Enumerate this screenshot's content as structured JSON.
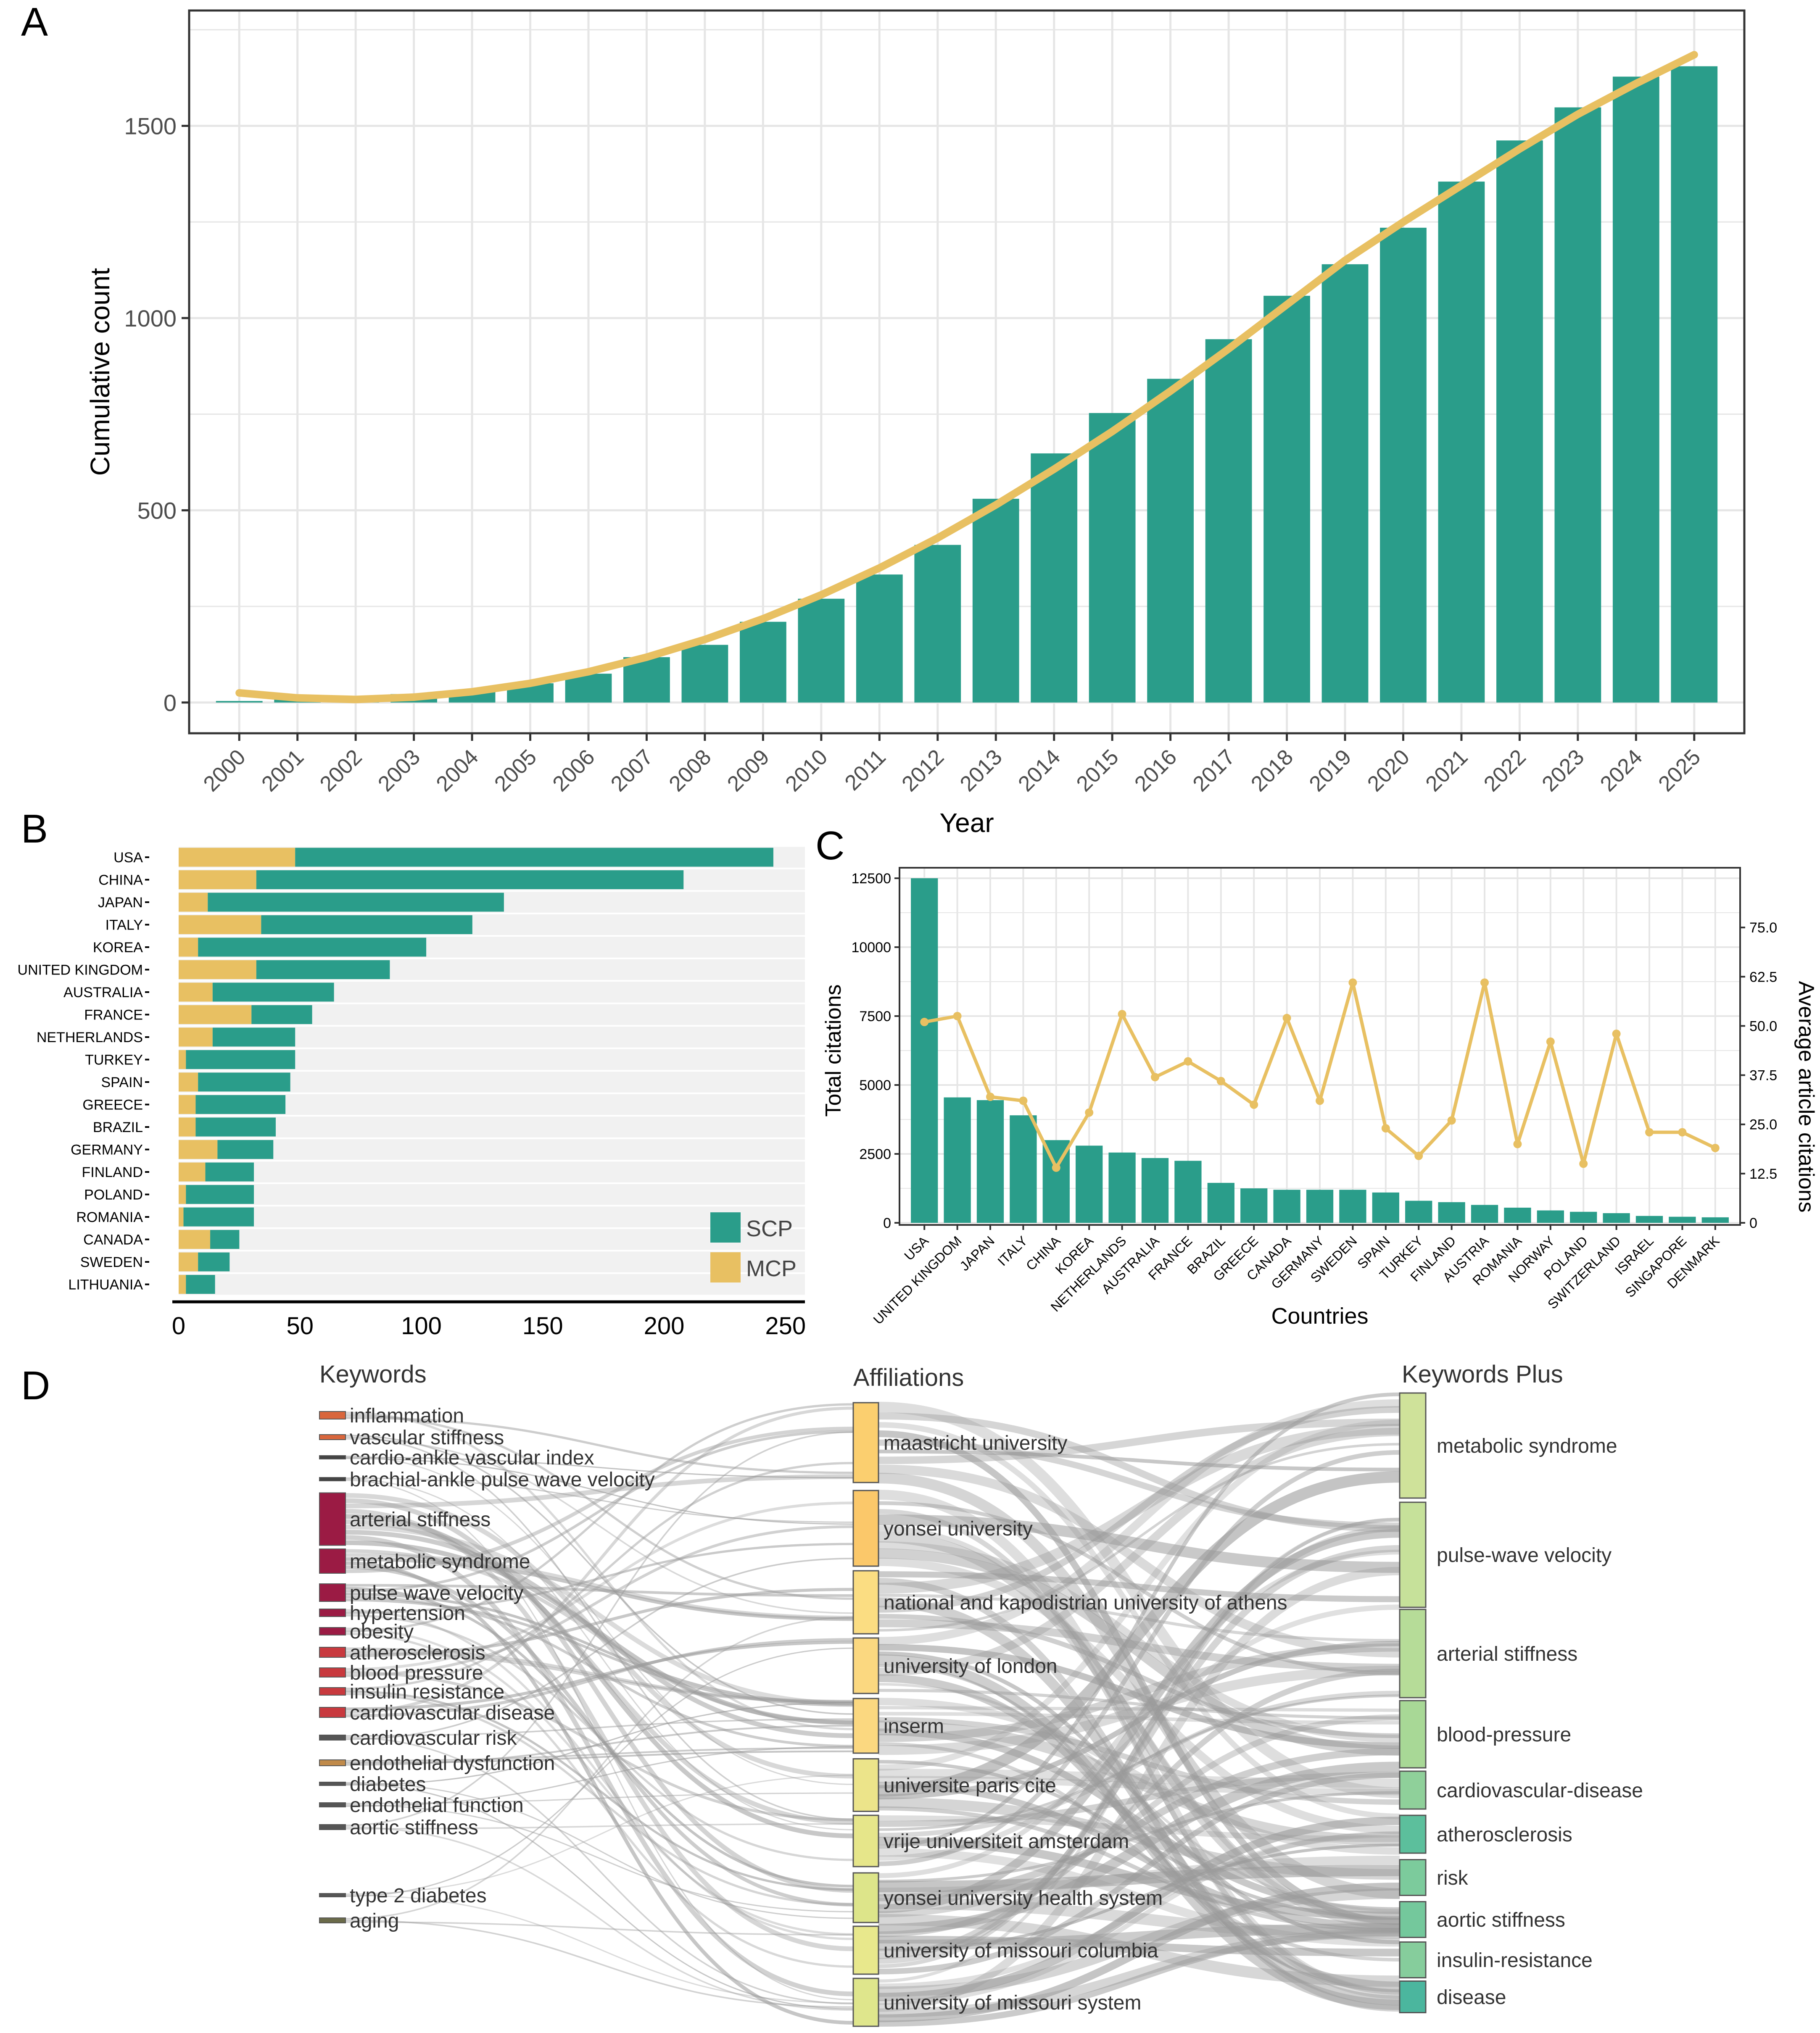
{
  "panel_labels": {
    "a": "A",
    "b": "B",
    "c": "C",
    "d": "D"
  },
  "colors": {
    "teal": "#2a9d8a",
    "gold": "#e8c062",
    "grid": "#e6e6e6",
    "flow": "#b0b0b0",
    "keyword_dark": "#9b1b44",
    "keyword_red": "#c8393e",
    "keyword_orange": "#d9663c"
  },
  "chart_data": [
    {
      "id": "A",
      "type": "bar",
      "title": "",
      "xlabel": "Year",
      "ylabel": "Cumulative count",
      "categories": [
        "2000",
        "2001",
        "2002",
        "2003",
        "2004",
        "2005",
        "2006",
        "2007",
        "2008",
        "2009",
        "2010",
        "2011",
        "2012",
        "2013",
        "2014",
        "2015",
        "2016",
        "2017",
        "2018",
        "2019",
        "2020",
        "2021",
        "2022",
        "2023",
        "2024",
        "2025"
      ],
      "values": [
        4,
        8,
        12,
        22,
        30,
        50,
        75,
        118,
        150,
        210,
        270,
        333,
        410,
        530,
        648,
        753,
        842,
        945,
        1058,
        1140,
        1235,
        1355,
        1462,
        1548,
        1628,
        1655
      ],
      "trend": {
        "name": "fit",
        "values": [
          25,
          12,
          8,
          14,
          28,
          50,
          80,
          118,
          164,
          218,
          280,
          350,
          428,
          514,
          607,
          705,
          810,
          920,
          1035,
          1150,
          1250,
          1345,
          1440,
          1530,
          1610,
          1685
        ]
      },
      "yticks": [
        0,
        500,
        1000,
        1500
      ],
      "ylim": [
        -80,
        1800
      ],
      "grid": true
    },
    {
      "id": "B",
      "type": "bar",
      "orientation": "horizontal-stacked",
      "categories": [
        "USA",
        "CHINA",
        "JAPAN",
        "ITALY",
        "KOREA",
        "UNITED KINGDOM",
        "AUSTRALIA",
        "FRANCE",
        "NETHERLANDS",
        "TURKEY",
        "SPAIN",
        "GREECE",
        "BRAZIL",
        "GERMANY",
        "FINLAND",
        "POLAND",
        "ROMANIA",
        "CANADA",
        "SWEDEN",
        "LITHUANIA"
      ],
      "series": [
        {
          "name": "MCP",
          "values": [
            48,
            32,
            12,
            34,
            8,
            32,
            14,
            30,
            14,
            3,
            8,
            7,
            7,
            16,
            11,
            3,
            2,
            13,
            8,
            3
          ]
        },
        {
          "name": "SCP",
          "values": [
            197,
            176,
            122,
            87,
            94,
            55,
            50,
            25,
            34,
            45,
            38,
            37,
            33,
            23,
            20,
            28,
            29,
            12,
            13,
            12
          ]
        }
      ],
      "legend": [
        "SCP",
        "MCP"
      ],
      "xticks": [
        0,
        50,
        100,
        150,
        200,
        250
      ],
      "xlim": [
        0,
        258
      ],
      "legend_position": "bottom-right"
    },
    {
      "id": "C",
      "type": "bar",
      "xlabel": "Countries",
      "ylabel": "Total citations",
      "y2label": "Average article citations",
      "categories": [
        "USA",
        "UNITED KINGDOM",
        "JAPAN",
        "ITALY",
        "CHINA",
        "KOREA",
        "NETHERLANDS",
        "AUSTRALIA",
        "FRANCE",
        "BRAZIL",
        "GREECE",
        "CANADA",
        "GERMANY",
        "SWEDEN",
        "SPAIN",
        "TURKEY",
        "FINLAND",
        "AUSTRIA",
        "ROMANIA",
        "NORWAY",
        "POLAND",
        "SWITZERLAND",
        "ISRAEL",
        "SINGAPORE",
        "DENMARK"
      ],
      "values": [
        12500,
        4550,
        4450,
        3900,
        3000,
        2800,
        2550,
        2350,
        2250,
        1450,
        1250,
        1200,
        1200,
        1200,
        1100,
        800,
        750,
        650,
        550,
        450,
        400,
        350,
        250,
        220,
        200
      ],
      "line": {
        "name": "Average article citations",
        "values": [
          51,
          52.5,
          32,
          31,
          14,
          28,
          53,
          37,
          41,
          36,
          30,
          52,
          31,
          61,
          24,
          17,
          26,
          61,
          20,
          46,
          15,
          48,
          23,
          23,
          19
        ]
      },
      "yticks": [
        0,
        2500,
        5000,
        7500,
        10000,
        12500
      ],
      "ylim": [
        0,
        12500
      ],
      "y2ticks": [
        "0",
        "12.5",
        "25.0",
        "37.5",
        "50.0",
        "62.5",
        "75.0"
      ],
      "y2lim": [
        0,
        87.5
      ]
    },
    {
      "id": "D",
      "type": "sankey",
      "column_titles": [
        "Keywords",
        "Affiliations",
        "Keywords Plus"
      ],
      "left": [
        "inflammation",
        "vascular stiffness",
        "cardio-ankle vascular index",
        "brachial-ankle pulse wave velocity",
        "arterial stiffness",
        "metabolic syndrome",
        "pulse wave velocity",
        "hypertension",
        "obesity",
        "atherosclerosis",
        "blood pressure",
        "insulin resistance",
        "cardiovascular disease",
        "cardiovascular risk",
        "endothelial dysfunction",
        "diabetes",
        "endothelial function",
        "aortic stiffness",
        "type 2 diabetes",
        "aging"
      ],
      "middle": [
        "maastricht university",
        "yonsei university",
        "national and kapodistrian university of athens",
        "university of london",
        "inserm",
        "universite paris cite",
        "vrije universiteit amsterdam",
        "yonsei university health system",
        "university of missouri columbia",
        "university of missouri system"
      ],
      "right": [
        "metabolic syndrome",
        "pulse-wave velocity",
        "arterial stiffness",
        "blood-pressure",
        "cardiovascular-disease",
        "atherosclerosis",
        "risk",
        "aortic stiffness",
        "insulin-resistance",
        "disease"
      ]
    }
  ]
}
